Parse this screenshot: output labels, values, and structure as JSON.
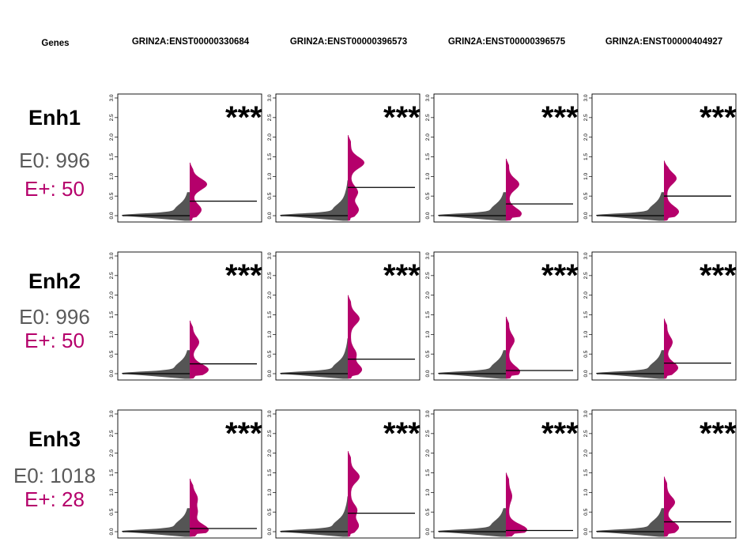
{
  "header": {
    "genes_label": "Genes",
    "transcripts": [
      "GRIN2A:ENST00000330684",
      "GRIN2A:ENST00000396573",
      "GRIN2A:ENST00000396575",
      "GRIN2A:ENST00000404927"
    ]
  },
  "rows": [
    {
      "label": "Enh1",
      "e0_text": "E0: 996",
      "eplus_text": "E+: 50"
    },
    {
      "label": "Enh2",
      "e0_text": "E0: 996",
      "eplus_text": "E+: 50"
    },
    {
      "label": "Enh3",
      "e0_text": "E0: 1018",
      "eplus_text": "E+: 28"
    }
  ],
  "colors": {
    "e0": "#555555",
    "eplus": "#b5006b",
    "e0_text": "#5a5a5a",
    "eplus_text": "#b5006b"
  },
  "chart_data": {
    "type": "split-violin",
    "ylim": [
      0,
      3.0
    ],
    "yticks": [
      "0.0",
      "0.5",
      "1.0",
      "1.5",
      "2.0",
      "2.5",
      "3.0"
    ],
    "significance": "***",
    "panels": [
      [
        {
          "e0_median": 0.0,
          "e0_max": 0.6,
          "eplus_median": 0.37,
          "eplus_max": 1.35,
          "eplus_bumps": [
            [
              0.15,
              0.55
            ],
            [
              0.8,
              0.9
            ]
          ]
        },
        {
          "e0_median": 0.0,
          "e0_max": 0.9,
          "eplus_median": 0.72,
          "eplus_max": 2.05,
          "eplus_bumps": [
            [
              0.15,
              0.5
            ],
            [
              0.6,
              0.45
            ],
            [
              1.35,
              0.85
            ]
          ]
        },
        {
          "e0_median": 0.0,
          "e0_max": 0.6,
          "eplus_median": 0.3,
          "eplus_max": 1.45,
          "eplus_bumps": [
            [
              0.05,
              0.8
            ],
            [
              0.8,
              0.65
            ]
          ]
        },
        {
          "e0_median": 0.0,
          "e0_max": 0.6,
          "eplus_median": 0.5,
          "eplus_max": 1.4,
          "eplus_bumps": [
            [
              0.1,
              0.75
            ],
            [
              0.95,
              0.6
            ]
          ]
        }
      ],
      [
        {
          "e0_median": 0.0,
          "e0_max": 0.6,
          "eplus_median": 0.25,
          "eplus_max": 1.35,
          "eplus_bumps": [
            [
              0.1,
              1.0
            ],
            [
              0.8,
              0.4
            ]
          ]
        },
        {
          "e0_median": 0.0,
          "e0_max": 0.9,
          "eplus_median": 0.37,
          "eplus_max": 2.0,
          "eplus_bumps": [
            [
              0.1,
              0.7
            ],
            [
              0.5,
              0.35
            ],
            [
              1.4,
              0.55
            ]
          ]
        },
        {
          "e0_median": 0.0,
          "e0_max": 0.6,
          "eplus_median": 0.08,
          "eplus_max": 1.45,
          "eplus_bumps": [
            [
              0.05,
              0.7
            ],
            [
              0.85,
              0.35
            ]
          ]
        },
        {
          "e0_median": 0.0,
          "e0_max": 0.6,
          "eplus_median": 0.27,
          "eplus_max": 1.4,
          "eplus_bumps": [
            [
              0.15,
              0.7
            ],
            [
              0.8,
              0.35
            ]
          ]
        }
      ],
      [
        {
          "e0_median": 0.0,
          "e0_max": 0.6,
          "eplus_median": 0.08,
          "eplus_max": 1.35,
          "eplus_bumps": [
            [
              0.05,
              1.0
            ],
            [
              0.5,
              0.3
            ],
            [
              0.85,
              0.3
            ]
          ]
        },
        {
          "e0_median": 0.0,
          "e0_max": 0.9,
          "eplus_median": 0.47,
          "eplus_max": 2.05,
          "eplus_bumps": [
            [
              0.15,
              0.5
            ],
            [
              0.55,
              0.4
            ],
            [
              1.4,
              0.55
            ]
          ]
        },
        {
          "e0_median": 0.0,
          "e0_max": 0.6,
          "eplus_median": 0.03,
          "eplus_max": 1.5,
          "eplus_bumps": [
            [
              0.05,
              1.15
            ],
            [
              0.9,
              0.2
            ]
          ]
        },
        {
          "e0_median": 0.0,
          "e0_max": 0.6,
          "eplus_median": 0.25,
          "eplus_max": 1.4,
          "eplus_bumps": [
            [
              0.1,
              0.75
            ],
            [
              0.75,
              0.5
            ]
          ]
        }
      ]
    ]
  }
}
